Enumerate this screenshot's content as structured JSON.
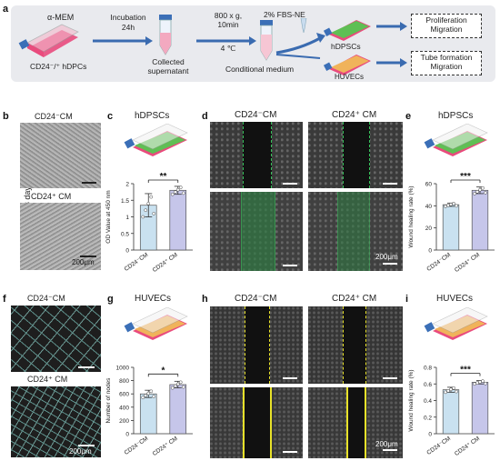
{
  "panel_labels": [
    "a",
    "b",
    "c",
    "d",
    "e",
    "f",
    "g",
    "h",
    "i"
  ],
  "workflow": {
    "medium": "α-MEM",
    "cells": "CD24⁻/⁺ hDPCs",
    "incubation": [
      "Incubation",
      "24h"
    ],
    "collected": [
      "Collected",
      "supernatant"
    ],
    "centrifuge": [
      "800 x g,",
      "10min",
      "4 ℃"
    ],
    "conditional": "Conditional medium",
    "fbs": "2% FBS-NE",
    "hdpscs": "hDPSCs",
    "huvecs": "HUVECs",
    "box1": [
      "Proliferation",
      "Migration"
    ],
    "box2": [
      "Tube formation",
      "Migration"
    ]
  },
  "row1": {
    "treated": "Treated for 3 days",
    "b_top": "CD24⁻CM",
    "b_bottom": "CD24⁺ CM",
    "scale": "200μm",
    "c_title": "hDPSCs",
    "d_left": "CD24⁻CM",
    "d_right": "CD24⁺ CM",
    "e_title": "hDPSCs"
  },
  "row2": {
    "f_top": "CD24⁻CM",
    "f_bottom": "CD24⁺ CM",
    "scale": "200μm",
    "g_title": "HUVECs",
    "h_left": "CD24⁻CM",
    "h_right": "CD24⁺ CM",
    "i_title": "HUVECs"
  },
  "colors": {
    "cm_neg": "#c9e1f0",
    "cm_pos": "#c6c6ea",
    "bar_edge": "#555555",
    "green": "#36c15a",
    "yellow": "#e8e22a"
  },
  "chart_data": [
    {
      "id": "c",
      "type": "bar",
      "categories": [
        "CD24⁻CM",
        "CD24⁺ CM"
      ],
      "values": [
        1.35,
        1.8
      ],
      "errors": [
        0.35,
        0.12
      ],
      "ylabel": "OD Value at 450 nm",
      "ylim": [
        0,
        2.0
      ],
      "yticks": [
        0,
        0.5,
        1.0,
        1.5,
        2.0
      ],
      "significance": "**",
      "grid": false
    },
    {
      "id": "e",
      "type": "bar",
      "categories": [
        "CD24⁻CM",
        "CD24⁺ CM"
      ],
      "values": [
        41,
        54
      ],
      "errors": [
        1.5,
        3
      ],
      "ylabel": "Wound healing rate (%)",
      "ylim": [
        0,
        60
      ],
      "yticks": [
        0,
        20,
        40,
        60
      ],
      "significance": "***",
      "grid": false
    },
    {
      "id": "g",
      "type": "bar",
      "categories": [
        "CD24⁻CM",
        "CD24⁺ CM"
      ],
      "values": [
        600,
        740
      ],
      "errors": [
        55,
        50
      ],
      "ylabel": "Number of nodes",
      "ylim": [
        0,
        1000
      ],
      "yticks": [
        0,
        200,
        400,
        600,
        800,
        1000
      ],
      "significance": "*",
      "grid": false
    },
    {
      "id": "i",
      "type": "bar",
      "categories": [
        "CD24⁻CM",
        "CD24⁺ CM"
      ],
      "values": [
        0.53,
        0.62
      ],
      "errors": [
        0.03,
        0.02
      ],
      "ylabel": "Wound healing rate (%)",
      "ylim": [
        0,
        0.8
      ],
      "yticks": [
        0,
        0.2,
        0.4,
        0.6,
        0.8
      ],
      "significance": "***",
      "grid": false
    }
  ]
}
